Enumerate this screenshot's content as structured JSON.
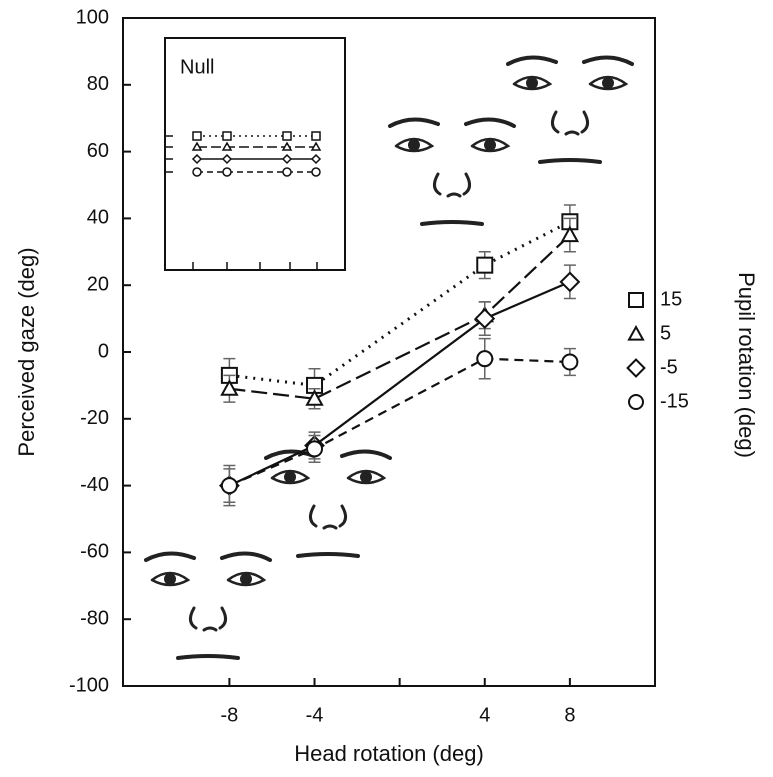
{
  "chart_data": {
    "type": "line",
    "inset": {
      "title": "Null"
    },
    "x_label": "Head rotation (deg)",
    "y_label": "Perceived gaze (deg)",
    "legend_title": "Pupil rotation (deg)",
    "legend_position": "right",
    "x": [
      -8,
      -4,
      4,
      8
    ],
    "xlim": [
      -13,
      12
    ],
    "xticks": [
      -8,
      -4,
      4,
      8
    ],
    "x_minor_ticks": [
      0
    ],
    "ylim": [
      -100,
      100
    ],
    "yticks": [
      -100,
      -80,
      -60,
      -40,
      -20,
      0,
      20,
      40,
      60,
      80,
      100
    ],
    "series": [
      {
        "name": "15",
        "color": "#111111",
        "marker": "square",
        "dash": "dotted",
        "values": [
          -7,
          -10,
          26,
          39
        ],
        "errors": [
          5,
          5,
          4,
          5
        ]
      },
      {
        "name": "5",
        "color": "#111111",
        "marker": "triangle",
        "dash": "long-dash",
        "values": [
          -11,
          -14,
          11,
          35
        ],
        "errors": [
          4,
          3,
          4,
          5
        ]
      },
      {
        "name": "-5",
        "color": "#111111",
        "marker": "diamond",
        "dash": "solid",
        "values": [
          -40,
          -28,
          10,
          21
        ],
        "errors": [
          6,
          4,
          5,
          5
        ]
      },
      {
        "name": "-15",
        "color": "#111111",
        "marker": "circle",
        "dash": "short-dash",
        "values": [
          -40,
          -29,
          -2,
          -3
        ],
        "errors": [
          5,
          4,
          6,
          4
        ]
      }
    ]
  }
}
